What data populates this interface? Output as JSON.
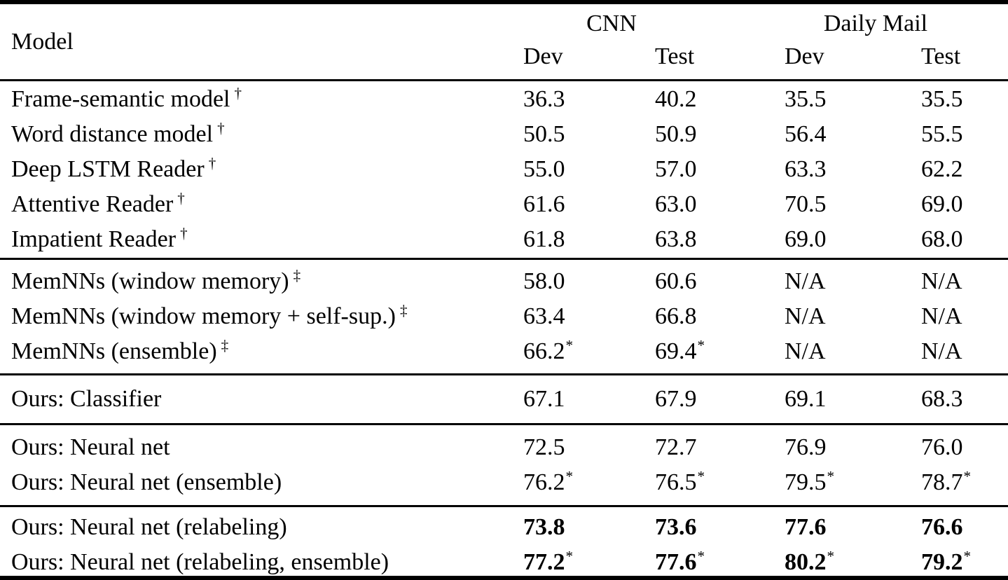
{
  "table": {
    "header": {
      "model_label": "Model",
      "groups": [
        {
          "label": "CNN"
        },
        {
          "label": "Daily Mail"
        }
      ],
      "subheaders": [
        "Dev",
        "Test",
        "Dev",
        "Test"
      ]
    },
    "blocks": [
      {
        "rows": [
          {
            "model": {
              "t": "Frame-semantic model",
              "s": "†"
            },
            "cells": [
              {
                "t": "36.3",
                "s": ""
              },
              {
                "t": "40.2",
                "s": ""
              },
              {
                "t": "35.5",
                "s": ""
              },
              {
                "t": "35.5",
                "s": ""
              }
            ]
          },
          {
            "model": {
              "t": "Word distance model",
              "s": "†"
            },
            "cells": [
              {
                "t": "50.5",
                "s": ""
              },
              {
                "t": "50.9",
                "s": ""
              },
              {
                "t": "56.4",
                "s": ""
              },
              {
                "t": "55.5",
                "s": ""
              }
            ]
          },
          {
            "model": {
              "t": "Deep LSTM Reader",
              "s": "†"
            },
            "cells": [
              {
                "t": "55.0",
                "s": ""
              },
              {
                "t": "57.0",
                "s": ""
              },
              {
                "t": "63.3",
                "s": ""
              },
              {
                "t": "62.2",
                "s": ""
              }
            ]
          },
          {
            "model": {
              "t": "Attentive Reader",
              "s": "†"
            },
            "cells": [
              {
                "t": "61.6",
                "s": ""
              },
              {
                "t": "63.0",
                "s": ""
              },
              {
                "t": "70.5",
                "s": ""
              },
              {
                "t": "69.0",
                "s": ""
              }
            ]
          },
          {
            "model": {
              "t": "Impatient Reader",
              "s": "†"
            },
            "cells": [
              {
                "t": "61.8",
                "s": ""
              },
              {
                "t": "63.8",
                "s": ""
              },
              {
                "t": "69.0",
                "s": ""
              },
              {
                "t": "68.0",
                "s": ""
              }
            ]
          }
        ]
      },
      {
        "rows": [
          {
            "model": {
              "t": "MemNNs (window memory)",
              "s": "‡"
            },
            "cells": [
              {
                "t": "58.0",
                "s": ""
              },
              {
                "t": "60.6",
                "s": ""
              },
              {
                "t": "N/A",
                "s": ""
              },
              {
                "t": "N/A",
                "s": ""
              }
            ]
          },
          {
            "model": {
              "t": "MemNNs (window memory + self-sup.)",
              "s": "‡"
            },
            "cells": [
              {
                "t": "63.4",
                "s": ""
              },
              {
                "t": "66.8",
                "s": ""
              },
              {
                "t": "N/A",
                "s": ""
              },
              {
                "t": "N/A",
                "s": ""
              }
            ]
          },
          {
            "model": {
              "t": "MemNNs (ensemble)",
              "s": "‡"
            },
            "cells": [
              {
                "t": "66.2",
                "s": "*"
              },
              {
                "t": "69.4",
                "s": "*"
              },
              {
                "t": "N/A",
                "s": ""
              },
              {
                "t": "N/A",
                "s": ""
              }
            ]
          }
        ]
      },
      {
        "rows": [
          {
            "model": {
              "t": "Ours: Classifier",
              "s": ""
            },
            "cells": [
              {
                "t": "67.1",
                "s": ""
              },
              {
                "t": "67.9",
                "s": ""
              },
              {
                "t": "69.1",
                "s": ""
              },
              {
                "t": "68.3",
                "s": ""
              }
            ]
          }
        ]
      },
      {
        "rows": [
          {
            "model": {
              "t": "Ours: Neural net",
              "s": ""
            },
            "cells": [
              {
                "t": "72.5",
                "s": ""
              },
              {
                "t": "72.7",
                "s": ""
              },
              {
                "t": "76.9",
                "s": ""
              },
              {
                "t": "76.0",
                "s": ""
              }
            ]
          },
          {
            "model": {
              "t": "Ours: Neural net (ensemble)",
              "s": ""
            },
            "cells": [
              {
                "t": "76.2",
                "s": "*"
              },
              {
                "t": "76.5",
                "s": "*"
              },
              {
                "t": "79.5",
                "s": "*"
              },
              {
                "t": "78.7",
                "s": "*"
              }
            ]
          }
        ]
      },
      {
        "rows": [
          {
            "model": {
              "t": "Ours: Neural net (relabeling)",
              "s": ""
            },
            "cells": [
              {
                "t": "73.8",
                "s": ""
              },
              {
                "t": "73.6",
                "s": ""
              },
              {
                "t": "77.6",
                "s": ""
              },
              {
                "t": "76.6",
                "s": ""
              }
            ]
          },
          {
            "model": {
              "t": "Ours: Neural net (relabeling, ensemble)",
              "s": ""
            },
            "cells": [
              {
                "t": "77.2",
                "s": "*"
              },
              {
                "t": "77.6",
                "s": "*"
              },
              {
                "t": "80.2",
                "s": "*"
              },
              {
                "t": "79.2",
                "s": "*"
              }
            ]
          }
        ]
      }
    ]
  }
}
